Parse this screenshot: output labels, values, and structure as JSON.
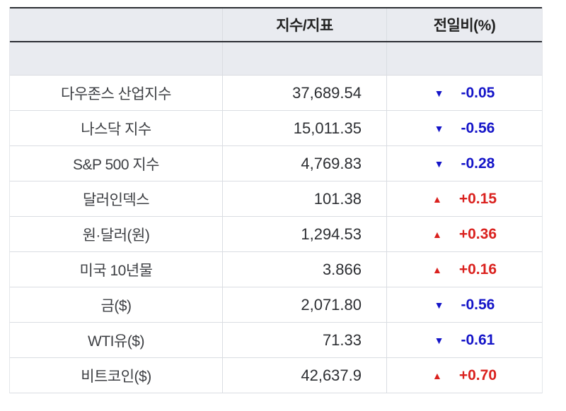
{
  "chart_data": {
    "type": "table",
    "title": "",
    "columns": [
      "",
      "지수/지표",
      "전일비(%)"
    ],
    "rows": [
      {
        "name": "다우존스 산업지수",
        "value": 37689.54,
        "change_pct": -0.05,
        "direction": "down"
      },
      {
        "name": "나스닥 지수",
        "value": 15011.35,
        "change_pct": -0.56,
        "direction": "down"
      },
      {
        "name": "S&P 500 지수",
        "value": 4769.83,
        "change_pct": -0.28,
        "direction": "down"
      },
      {
        "name": "달러인덱스",
        "value": 101.38,
        "change_pct": 0.15,
        "direction": "up"
      },
      {
        "name": "원·달러(원)",
        "value": 1294.53,
        "change_pct": 0.36,
        "direction": "up"
      },
      {
        "name": "미국 10년물",
        "value": 3.866,
        "change_pct": 0.16,
        "direction": "up"
      },
      {
        "name": "금($)",
        "value": 2071.8,
        "change_pct": -0.56,
        "direction": "down"
      },
      {
        "name": "WTI유($)",
        "value": 71.33,
        "change_pct": -0.61,
        "direction": "down"
      },
      {
        "name": "비트코인($)",
        "value": 42637.9,
        "change_pct": 0.7,
        "direction": "up"
      }
    ]
  },
  "table": {
    "header": {
      "index_label": "지수/지표",
      "change_label": "전일비(%)"
    },
    "rows": [
      {
        "name": "다우존스 산업지수",
        "value": "37,689.54",
        "direction": "down",
        "change": "-0.05"
      },
      {
        "name": "나스닥 지수",
        "value": "15,011.35",
        "direction": "down",
        "change": "-0.56"
      },
      {
        "name": "S&P 500 지수",
        "value": "4,769.83",
        "direction": "down",
        "change": "-0.28"
      },
      {
        "name": "달러인덱스",
        "value": "101.38",
        "direction": "up",
        "change": "+0.15"
      },
      {
        "name": "원·달러(원)",
        "value": "1,294.53",
        "direction": "up",
        "change": "+0.36"
      },
      {
        "name": "미국 10년물",
        "value": "3.866",
        "direction": "up",
        "change": "+0.16"
      },
      {
        "name": "금($)",
        "value": "2,071.80",
        "direction": "down",
        "change": "-0.56"
      },
      {
        "name": "WTI유($)",
        "value": "71.33",
        "direction": "down",
        "change": "-0.61"
      },
      {
        "name": "비트코인($)",
        "value": "42,637.9",
        "direction": "up",
        "change": "+0.70"
      }
    ],
    "icons": {
      "up": "▲",
      "down": "▼"
    },
    "colors": {
      "up": "#da211e",
      "down": "#1414c8",
      "header_bg": "#e9ebf0",
      "border_dark": "#2b2d33",
      "border_light": "#dadde2",
      "border_outer": "#e4e6ea"
    }
  }
}
